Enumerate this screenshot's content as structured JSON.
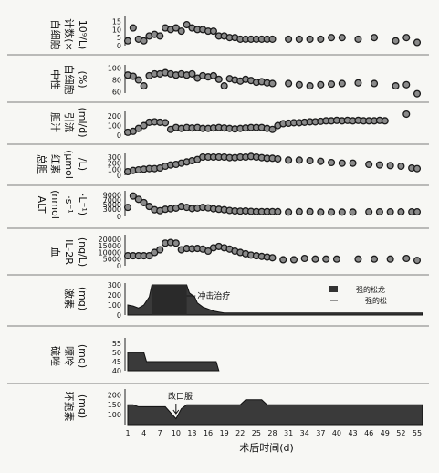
{
  "chart_data": [
    {
      "type": "scatter",
      "ylabel": "白细胞计数(×10⁹/L)",
      "yticks": [
        0,
        5,
        10,
        15
      ],
      "ylim": [
        0,
        17
      ],
      "x": [
        1,
        2,
        3,
        4,
        5,
        6,
        7,
        8,
        9,
        10,
        11,
        12,
        13,
        14,
        15,
        16,
        17,
        18,
        19,
        20,
        21,
        22,
        23,
        24,
        25,
        26,
        27,
        28,
        31,
        33,
        35,
        37,
        39,
        41,
        44,
        47,
        51,
        53,
        55
      ],
      "values": [
        3,
        11,
        4,
        3,
        6,
        7,
        6,
        11,
        10,
        11,
        9,
        13,
        11,
        10,
        10,
        9,
        9,
        6,
        6,
        5,
        5,
        4,
        4,
        4,
        4,
        4,
        4,
        4,
        4,
        4,
        4,
        4,
        5,
        5,
        4,
        5,
        3,
        5,
        2
      ]
    },
    {
      "type": "scatter",
      "ylabel": "中性白细胞(%)",
      "yticks": [
        60,
        80,
        100
      ],
      "ylim": [
        58,
        102
      ],
      "x": [
        1,
        2,
        3,
        4,
        5,
        6,
        7,
        8,
        9,
        10,
        11,
        12,
        13,
        14,
        15,
        16,
        17,
        18,
        19,
        20,
        21,
        22,
        23,
        24,
        25,
        26,
        27,
        28,
        31,
        33,
        35,
        37,
        39,
        41,
        44,
        47,
        51,
        53,
        55
      ],
      "values": [
        88,
        86,
        80,
        70,
        87,
        90,
        90,
        92,
        90,
        88,
        90,
        88,
        90,
        83,
        87,
        85,
        87,
        81,
        70,
        82,
        80,
        78,
        81,
        79,
        76,
        77,
        75,
        74,
        74,
        72,
        70,
        72,
        73,
        74,
        75,
        74,
        70,
        72,
        57
      ]
    },
    {
      "type": "scatter",
      "ylabel": "胆汁引流(ml/d)",
      "yticks": [
        0,
        100,
        200
      ],
      "ylim": [
        0,
        230
      ],
      "x": [
        1,
        2,
        3,
        4,
        5,
        6,
        7,
        8,
        9,
        10,
        11,
        12,
        13,
        14,
        15,
        16,
        17,
        18,
        19,
        20,
        21,
        22,
        23,
        24,
        25,
        26,
        27,
        28,
        29,
        30,
        31,
        32,
        33,
        34,
        35,
        36,
        37,
        38,
        39,
        40,
        41,
        42,
        43,
        44,
        45,
        46,
        47,
        48,
        49,
        53
      ],
      "values": [
        30,
        40,
        70,
        100,
        135,
        140,
        135,
        130,
        60,
        80,
        70,
        80,
        75,
        80,
        70,
        70,
        75,
        80,
        75,
        70,
        65,
        70,
        75,
        80,
        80,
        80,
        70,
        60,
        100,
        120,
        125,
        130,
        130,
        135,
        140,
        140,
        145,
        150,
        150,
        155,
        150,
        155,
        150,
        155,
        150,
        150,
        150,
        155,
        150,
        220
      ]
    },
    {
      "type": "scatter",
      "ylabel": "总胆红素(μmol/L)",
      "yticks": [
        0,
        100,
        200,
        300
      ],
      "ylim": [
        0,
        330
      ],
      "x": [
        1,
        2,
        3,
        4,
        5,
        6,
        7,
        8,
        9,
        10,
        11,
        12,
        13,
        14,
        15,
        16,
        17,
        18,
        19,
        20,
        21,
        22,
        23,
        24,
        25,
        26,
        27,
        28,
        29,
        31,
        33,
        35,
        37,
        39,
        41,
        43,
        46,
        48,
        50,
        52,
        54,
        55
      ],
      "values": [
        60,
        80,
        90,
        100,
        110,
        110,
        120,
        150,
        170,
        180,
        200,
        220,
        240,
        260,
        300,
        300,
        300,
        300,
        300,
        290,
        290,
        300,
        300,
        310,
        300,
        290,
        280,
        280,
        270,
        250,
        250,
        240,
        230,
        210,
        200,
        200,
        180,
        170,
        160,
        150,
        120,
        110
      ]
    },
    {
      "type": "scatter",
      "ylabel": "ALT(nmol·s⁻¹·L⁻¹)",
      "yticks": [
        0,
        3000,
        5000,
        7000,
        9000
      ],
      "ylim": [
        0,
        10000
      ],
      "x": [
        1,
        2,
        3,
        4,
        5,
        6,
        7,
        8,
        9,
        10,
        11,
        12,
        13,
        14,
        15,
        16,
        17,
        18,
        19,
        20,
        21,
        22,
        23,
        24,
        25,
        26,
        27,
        28,
        29,
        31,
        33,
        35,
        37,
        39,
        41,
        43,
        46,
        48,
        50,
        52,
        54,
        55
      ],
      "values": [
        3800,
        8600,
        7200,
        5800,
        4200,
        2800,
        2400,
        3000,
        3200,
        3500,
        4200,
        3800,
        3300,
        3500,
        3800,
        3600,
        3200,
        3000,
        2800,
        2500,
        2300,
        2200,
        2300,
        2100,
        2000,
        2000,
        2000,
        2000,
        2000,
        1800,
        2000,
        2000,
        1800,
        1800,
        1800,
        1800,
        1900,
        1900,
        1900,
        1900,
        1900,
        1900
      ]
    },
    {
      "type": "scatter",
      "ylabel": "血IL-2R(ng/L)",
      "yticks": [
        0,
        5000,
        10000,
        15000,
        20000
      ],
      "ylim": [
        0,
        22000
      ],
      "x": [
        1,
        2,
        3,
        4,
        5,
        6,
        7,
        8,
        9,
        10,
        11,
        12,
        13,
        14,
        15,
        16,
        17,
        18,
        19,
        20,
        21,
        22,
        23,
        24,
        25,
        26,
        27,
        28,
        30,
        32,
        34,
        36,
        38,
        40,
        44,
        47,
        50,
        53,
        55
      ],
      "values": [
        7500,
        7500,
        7500,
        7500,
        7500,
        10000,
        12000,
        17000,
        17500,
        17000,
        12000,
        13000,
        12800,
        13000,
        12500,
        11000,
        13500,
        14500,
        13500,
        12500,
        11000,
        10000,
        9000,
        8000,
        7500,
        7000,
        6500,
        6000,
        4500,
        4500,
        5500,
        5000,
        5000,
        5000,
        5000,
        5000,
        5000,
        5500,
        4000
      ]
    },
    {
      "type": "area",
      "ylabel": "激素(mg)",
      "yticks": [
        0,
        100,
        200,
        300
      ],
      "ylim": [
        0,
        300
      ],
      "annotations": [
        "冲击治疗"
      ],
      "legend": [
        "强的松龙",
        "强的松"
      ],
      "x": [
        1,
        2,
        3,
        4,
        5,
        5.5,
        7,
        12,
        12.5,
        13.5,
        14,
        15,
        16,
        17,
        18,
        19,
        56
      ],
      "values": [
        100,
        90,
        70,
        100,
        180,
        300,
        300,
        300,
        220,
        180,
        120,
        80,
        60,
        40,
        30,
        20,
        20
      ]
    },
    {
      "type": "area",
      "ylabel": "硫唑嘌呤(mg)",
      "yticks": [
        40,
        45,
        50,
        55
      ],
      "ylim": [
        40,
        57
      ],
      "x": [
        1,
        4,
        4.5,
        17.5,
        18
      ],
      "values": [
        50,
        50,
        45,
        45,
        40
      ]
    },
    {
      "type": "area",
      "ylabel": "环孢素(mg)",
      "yticks": [
        100,
        150,
        200
      ],
      "ylim": [
        50,
        220
      ],
      "annotations": [
        "改口服"
      ],
      "x": [
        1,
        2,
        3,
        8,
        9,
        10,
        11,
        12,
        22,
        23,
        26,
        27,
        28,
        56
      ],
      "values": [
        150,
        150,
        140,
        140,
        110,
        80,
        130,
        150,
        150,
        175,
        175,
        150,
        150,
        150
      ]
    }
  ],
  "x_axis": {
    "label": "术后时间(d)",
    "ticks": [
      1,
      4,
      7,
      10,
      13,
      16,
      19,
      22,
      25,
      28,
      31,
      34,
      37,
      40,
      43,
      46,
      49,
      52,
      55
    ]
  }
}
